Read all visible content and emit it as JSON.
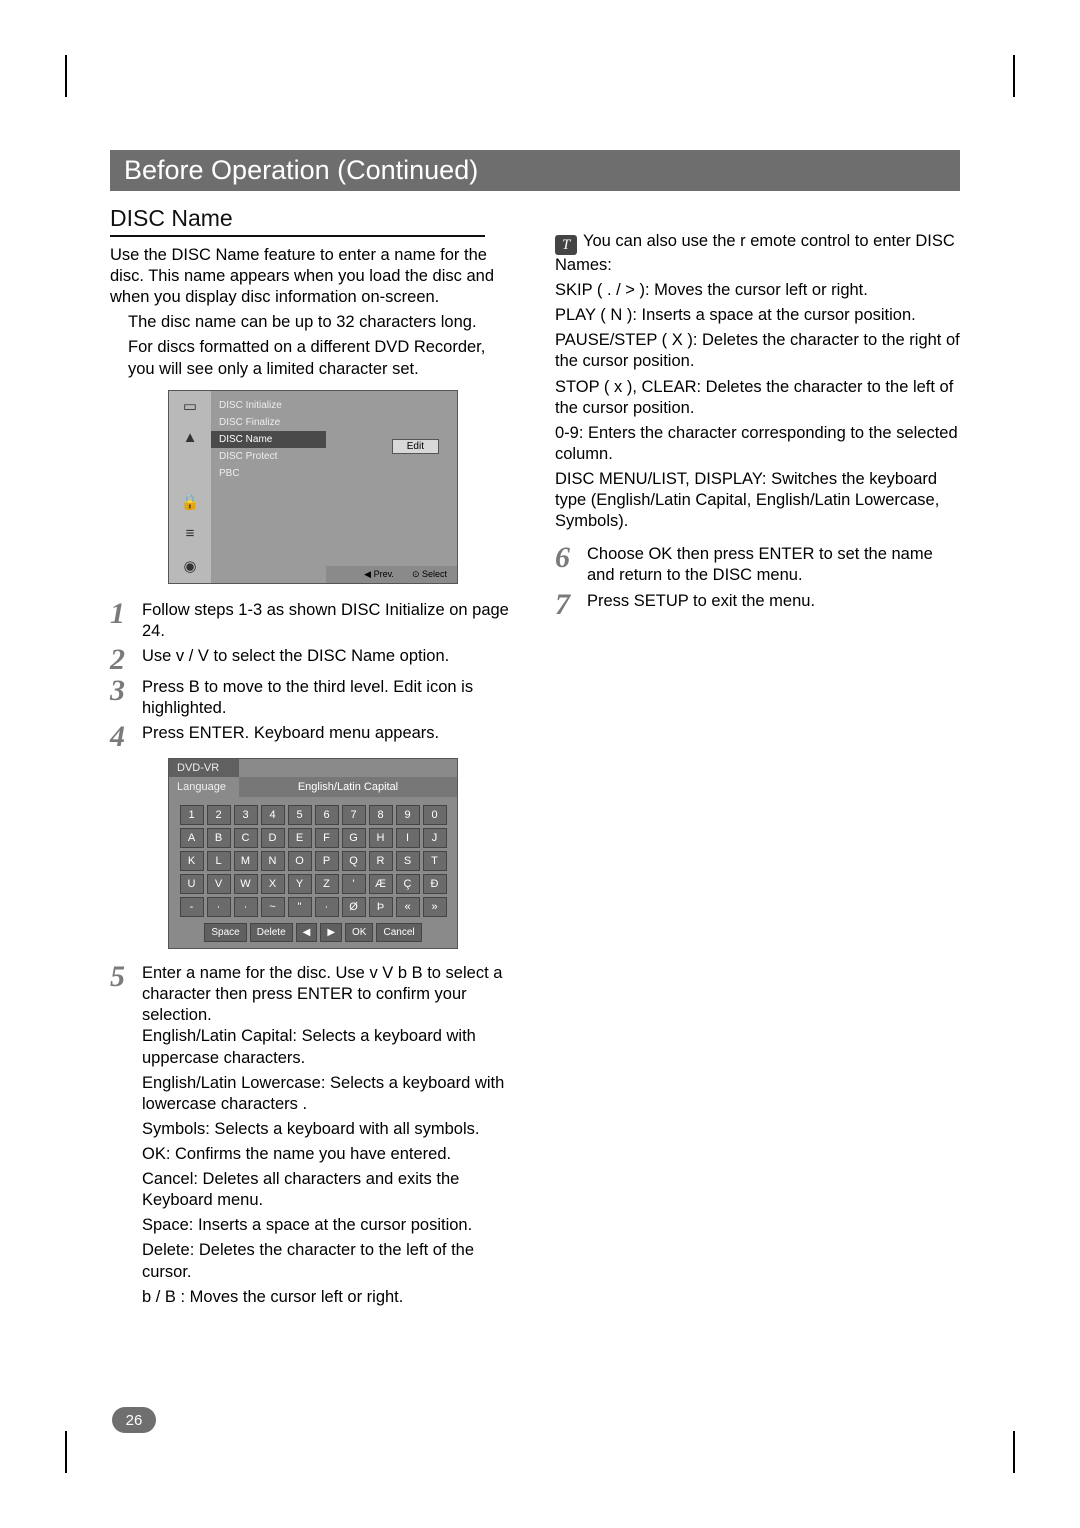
{
  "page_number": "26",
  "header": "Before Operation (Continued)",
  "section_title": "DISC Name",
  "intro": [
    "Use the DISC Name feature to enter a name for the disc. This name appears when you load the disc and when you display disc information on-screen.",
    "The disc name can be up to 32 characters long.",
    "For discs formatted on a different DVD Recorder, you will see only a limited character set."
  ],
  "osd1": {
    "items": [
      "DISC Initialize",
      "DISC Finalize",
      "DISC Name",
      "DISC Protect",
      "PBC"
    ],
    "selected_index": 2,
    "edit_label": "Edit",
    "footer_prev": "◀ Prev.",
    "footer_select": "⊙ Select"
  },
  "steps_left": [
    "Follow steps 1-3 as shown DISC Initialize on page 24.",
    "Use v / V to select the DISC Name option.",
    "Press B to move to the third level. Edit icon is highlighted.",
    "Press ENTER. Keyboard menu appears."
  ],
  "osd2": {
    "title": "DVD-VR",
    "lang_label": "Language",
    "lang_value": "English/Latin Capital",
    "rows": [
      [
        "1",
        "2",
        "3",
        "4",
        "5",
        "6",
        "7",
        "8",
        "9",
        "0"
      ],
      [
        "A",
        "B",
        "C",
        "D",
        "E",
        "F",
        "G",
        "H",
        "I",
        "J"
      ],
      [
        "K",
        "L",
        "M",
        "N",
        "O",
        "P",
        "Q",
        "R",
        "S",
        "T"
      ],
      [
        "U",
        "V",
        "W",
        "X",
        "Y",
        "Z",
        "'",
        "Æ",
        "Ç",
        "Ð"
      ],
      [
        "-",
        "·",
        "·",
        "~",
        "\"",
        "·",
        "Ø",
        "Þ",
        "«",
        "»"
      ]
    ],
    "bottom": [
      "Space",
      "Delete",
      "◀",
      "▶",
      "OK",
      "Cancel"
    ]
  },
  "step5_lead": "Enter a name for the disc. Use   v V b B to select a character then press ENTER to confirm your selection.",
  "step5_items": [
    "English/Latin Capital:   Selects a keyboard with uppercase characters.",
    "English/Latin Lowercase:   Selects a keyboard with lowercase characters .",
    "Symbols:  Selects a keyboard with all symbols.",
    "OK: Confirms the name you have entered.",
    "Cancel:  Deletes all characters and exits the Keyboard menu.",
    "Space:  Inserts a space at the cursor position.",
    "Delete:  Deletes the character to the left of the cursor.",
    "b / B : Moves the cursor left or right."
  ],
  "tip_lead": "You can also use the r   emote control to enter DISC Names:",
  "tip_items": [
    "SKIP ( .      / >     ): Moves the cursor left or right.",
    "PLAY ( N  ): Inserts a space at the cursor position.",
    "PAUSE/STEP ( X ): Deletes the character to the right of the cursor position.",
    "STOP ( x ), CLEAR:  Deletes the character to the left of the cursor position.",
    "0-9: Enters the character corresponding to the selected column.",
    "DISC MENU/LIST, DISPLAY:  Switches the keyboard type (English/Latin Capital, English/Latin Lowercase, Symbols)."
  ],
  "step6": "Choose OK then press ENTER to set the name and return to the DISC menu.",
  "step7": "Press SETUP to exit the menu.",
  "tip_icon_char": "T"
}
